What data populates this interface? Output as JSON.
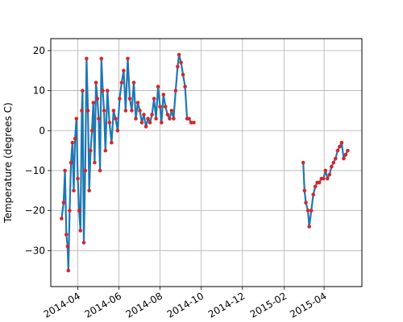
{
  "chart_data": {
    "type": "scatter",
    "title": "",
    "xlabel": "",
    "ylabel": "Temperature (degrees C)",
    "ylim": [
      -39,
      23
    ],
    "xlim": [
      "2014-02-20",
      "2015-05-27"
    ],
    "grid": true,
    "x_ticks": [
      "2014-04",
      "2014-06",
      "2014-08",
      "2014-10",
      "2014-12",
      "2015-02",
      "2015-04"
    ],
    "y_ticks": [
      20,
      10,
      0,
      -10,
      -20,
      -30
    ],
    "line_color": "#1f77b4",
    "marker_color": "#d62728",
    "series": [
      {
        "points": [
          [
            "2014-03-08",
            -22
          ],
          [
            "2014-03-11",
            -18
          ],
          [
            "2014-03-13",
            -10
          ],
          [
            "2014-03-15",
            -26
          ],
          [
            "2014-03-17",
            -29
          ],
          [
            "2014-03-18",
            -35
          ],
          [
            "2014-03-20",
            -20
          ],
          [
            "2014-03-22",
            -8
          ],
          [
            "2014-03-24",
            -3
          ],
          [
            "2014-03-26",
            -15
          ],
          [
            "2014-03-28",
            -2
          ],
          [
            "2014-03-30",
            3
          ],
          [
            "2014-04-01",
            -12
          ],
          [
            "2014-04-03",
            -20
          ],
          [
            "2014-04-05",
            -25
          ],
          [
            "2014-04-07",
            5
          ],
          [
            "2014-04-08",
            10
          ],
          [
            "2014-04-10",
            -28
          ],
          [
            "2014-04-12",
            -10
          ],
          [
            "2014-04-14",
            18
          ],
          [
            "2014-04-16",
            5
          ],
          [
            "2014-04-18",
            -15
          ],
          [
            "2014-04-20",
            -5
          ],
          [
            "2014-04-22",
            0
          ],
          [
            "2014-04-24",
            7
          ],
          [
            "2014-04-26",
            -8
          ],
          [
            "2014-04-28",
            12
          ],
          [
            "2014-04-30",
            8
          ],
          [
            "2014-05-02",
            3
          ],
          [
            "2014-05-04",
            -10
          ],
          [
            "2014-05-06",
            18
          ],
          [
            "2014-05-08",
            10
          ],
          [
            "2014-05-10",
            5
          ],
          [
            "2014-05-12",
            -5
          ],
          [
            "2014-05-15",
            10
          ],
          [
            "2014-05-18",
            2
          ],
          [
            "2014-05-21",
            -3
          ],
          [
            "2014-05-24",
            5
          ],
          [
            "2014-05-27",
            3
          ],
          [
            "2014-05-30",
            0
          ],
          [
            "2014-06-02",
            8
          ],
          [
            "2014-06-05",
            12
          ],
          [
            "2014-06-08",
            15
          ],
          [
            "2014-06-11",
            5
          ],
          [
            "2014-06-14",
            18
          ],
          [
            "2014-06-17",
            8
          ],
          [
            "2014-06-20",
            5
          ],
          [
            "2014-06-23",
            12
          ],
          [
            "2014-06-26",
            3
          ],
          [
            "2014-06-29",
            7
          ],
          [
            "2014-07-02",
            5
          ],
          [
            "2014-07-05",
            2
          ],
          [
            "2014-07-08",
            4
          ],
          [
            "2014-07-11",
            1
          ],
          [
            "2014-07-14",
            3
          ],
          [
            "2014-07-17",
            2
          ],
          [
            "2014-07-20",
            4
          ],
          [
            "2014-07-23",
            8
          ],
          [
            "2014-07-26",
            3
          ],
          [
            "2014-07-29",
            11
          ],
          [
            "2014-08-01",
            6
          ],
          [
            "2014-08-03",
            2
          ],
          [
            "2014-08-06",
            9
          ],
          [
            "2014-08-09",
            6
          ],
          [
            "2014-08-12",
            4
          ],
          [
            "2014-08-15",
            3
          ],
          [
            "2014-08-18",
            5
          ],
          [
            "2014-08-21",
            3
          ],
          [
            "2014-08-24",
            10
          ],
          [
            "2014-08-27",
            16
          ],
          [
            "2014-08-29",
            19
          ],
          [
            "2014-09-01",
            17
          ],
          [
            "2014-09-04",
            14
          ],
          [
            "2014-09-07",
            11
          ],
          [
            "2014-09-10",
            3
          ],
          [
            "2014-09-13",
            3
          ],
          [
            "2014-09-16",
            2
          ],
          [
            "2014-09-20",
            2
          ],
          [
            "2015-03-01",
            -8
          ],
          [
            "2015-03-03",
            -15
          ],
          [
            "2015-03-05",
            -18
          ],
          [
            "2015-03-08",
            -20
          ],
          [
            "2015-03-10",
            -24
          ],
          [
            "2015-03-13",
            -20
          ],
          [
            "2015-03-16",
            -16
          ],
          [
            "2015-03-19",
            -14
          ],
          [
            "2015-03-22",
            -13
          ],
          [
            "2015-03-25",
            -13
          ],
          [
            "2015-03-28",
            -12
          ],
          [
            "2015-03-31",
            -12
          ],
          [
            "2015-04-03",
            -10
          ],
          [
            "2015-04-06",
            -12
          ],
          [
            "2015-04-09",
            -11
          ],
          [
            "2015-04-12",
            -9
          ],
          [
            "2015-04-15",
            -8
          ],
          [
            "2015-04-18",
            -7
          ],
          [
            "2015-04-21",
            -5
          ],
          [
            "2015-04-24",
            -4
          ],
          [
            "2015-04-27",
            -3
          ],
          [
            "2015-04-30",
            -7
          ],
          [
            "2015-05-03",
            -6
          ],
          [
            "2015-05-06",
            -5
          ]
        ]
      }
    ]
  }
}
